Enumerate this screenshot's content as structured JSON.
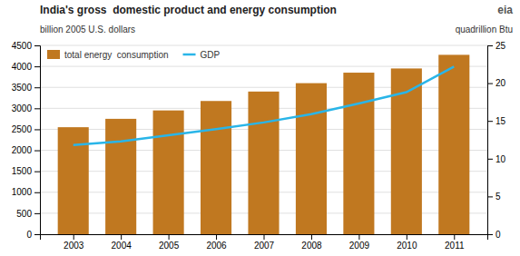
{
  "chart_data": {
    "type": "bar",
    "title": "India's gross  domestic product and energy consumption",
    "y_label": "billion 2005 U.S. dollars",
    "y2_label": "quadrillion Btu",
    "annotations": [
      "eia"
    ],
    "x": [
      2003,
      2004,
      2005,
      2006,
      2007,
      2008,
      2009,
      2010,
      2011
    ],
    "xlim": [
      2002.3,
      2011.7
    ],
    "xticks": [
      2003,
      2004,
      2005,
      2006,
      2007,
      2008,
      2009,
      2010,
      2011
    ],
    "ylim": [
      0,
      4500
    ],
    "yticks": [
      0,
      500,
      1000,
      1500,
      2000,
      2500,
      3000,
      3500,
      4000,
      4500
    ],
    "y2lim": [
      0,
      25
    ],
    "y2ticks": [
      0,
      5,
      10,
      15,
      20,
      25
    ],
    "grid": true,
    "legend": "top-left",
    "series": [
      {
        "name": "total energy  consumption",
        "type": "bar",
        "color": "#c07820",
        "values": [
          2550,
          2750,
          2950,
          3175,
          3400,
          3600,
          3850,
          3950,
          4275
        ]
      },
      {
        "name": "GDP",
        "type": "line",
        "axis": "y2",
        "color": "#29b5e8",
        "values": [
          11.8,
          12.3,
          13.1,
          13.9,
          14.8,
          15.9,
          17.3,
          18.8,
          22.2
        ]
      }
    ]
  }
}
